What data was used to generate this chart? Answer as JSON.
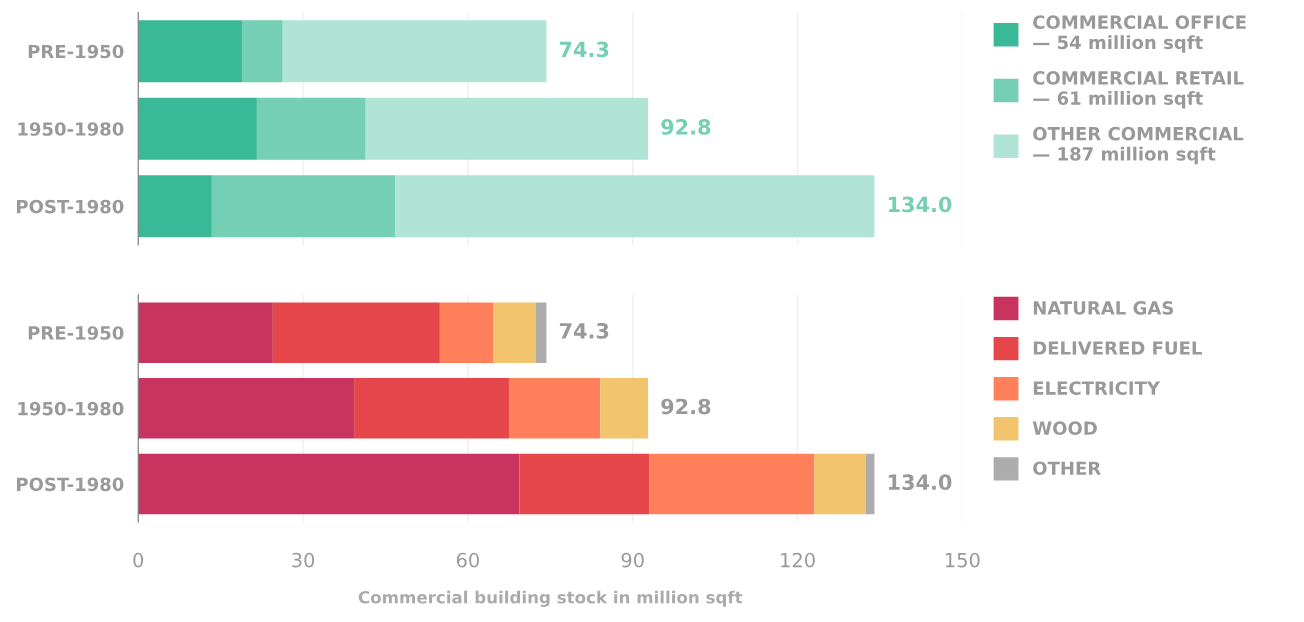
{
  "chart_data": [
    {
      "type": "bar",
      "orientation": "horizontal",
      "stacked": true,
      "categories": [
        "PRE-1950",
        "1950-1980",
        "POST-1980"
      ],
      "xlim": [
        0,
        150
      ],
      "xticks": [
        0,
        30,
        60,
        90,
        120,
        150
      ],
      "grid": "x",
      "legend": "right",
      "tick_labels": "y",
      "totals": [
        "74.3",
        "92.8",
        "134.0"
      ],
      "series": [
        {
          "name": "COMMERCIAL OFFICE\n— 54 million sqft",
          "color": "#3ab996",
          "values": [
            18.9,
            21.6,
            13.4
          ]
        },
        {
          "name": "COMMERCIAL RETAIL\n— 61 million sqft",
          "color": "#74cfb5",
          "values": [
            7.4,
            19.8,
            33.4
          ]
        },
        {
          "name": "OTHER COMMERCIAL\n— 187 million sqft",
          "color": "#b0e4d5",
          "values": [
            48.0,
            51.4,
            87.2
          ]
        }
      ]
    },
    {
      "type": "bar",
      "orientation": "horizontal",
      "stacked": true,
      "categories": [
        "PRE-1950",
        "1950-1980",
        "POST-1980"
      ],
      "xlim": [
        0,
        150
      ],
      "xticks": [
        0,
        30,
        60,
        90,
        120,
        150
      ],
      "grid": "x",
      "legend": "right",
      "xlabel": "Commercial building stock in million sqft",
      "totals": [
        "74.3",
        "92.8",
        "134.0"
      ],
      "series": [
        {
          "name": "NATURAL GAS",
          "color": "#c8335f",
          "values": [
            24.5,
            39.3,
            69.4
          ]
        },
        {
          "name": "DELIVERED FUEL",
          "color": "#e5464a",
          "values": [
            30.4,
            28.2,
            23.6
          ]
        },
        {
          "name": "ELECTRICITY",
          "color": "#ff805a",
          "values": [
            9.7,
            16.6,
            30.1
          ]
        },
        {
          "name": "WOOD",
          "color": "#f2c46d",
          "values": [
            7.8,
            8.7,
            9.3
          ]
        },
        {
          "name": "OTHER",
          "color": "#acacac",
          "values": [
            1.9,
            null,
            1.6
          ]
        }
      ]
    }
  ]
}
